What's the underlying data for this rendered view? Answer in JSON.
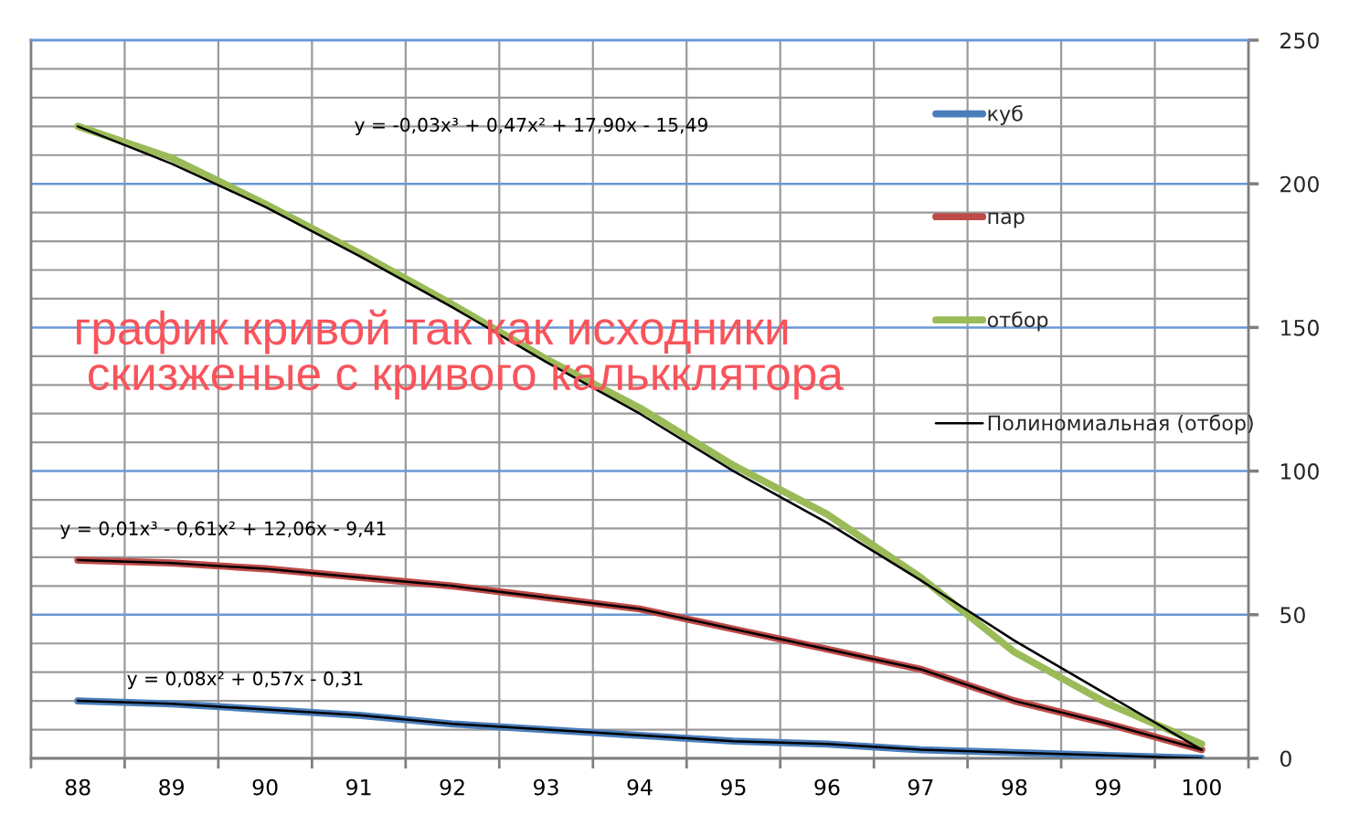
{
  "chart_data": {
    "type": "line",
    "categories": [
      "88",
      "89",
      "90",
      "91",
      "92",
      "93",
      "94",
      "95",
      "96",
      "97",
      "98",
      "99",
      "100"
    ],
    "series": [
      {
        "name": "куб",
        "color": "#4a7ebb",
        "values": [
          20,
          19,
          17,
          15,
          12,
          10,
          8,
          6,
          5,
          3,
          2,
          1,
          0
        ]
      },
      {
        "name": "пар",
        "color": "#be4b48",
        "values": [
          69,
          68,
          66,
          63,
          60,
          56,
          52,
          45,
          38,
          31,
          20,
          12,
          3
        ]
      },
      {
        "name": "отбор",
        "color": "#9bbb59",
        "values": [
          220,
          209,
          193,
          176,
          158,
          139,
          122,
          102,
          85,
          63,
          37,
          19,
          5
        ]
      },
      {
        "type": "line",
        "color": "#000000",
        "values": [
          20,
          19,
          17,
          15,
          12,
          10,
          8,
          6,
          5,
          3,
          2,
          1,
          0
        ]
      },
      {
        "type": "line",
        "color": "#000000",
        "values": [
          69,
          68,
          66,
          63,
          60,
          56,
          52,
          45,
          38,
          31,
          20,
          12,
          3
        ]
      },
      {
        "name": "Полиномиальная (отбор)",
        "type": "line",
        "color": "#000000",
        "values": [
          220,
          207,
          192,
          175,
          157,
          138,
          120,
          100,
          82,
          62,
          41,
          22,
          3
        ]
      }
    ],
    "ylim": [
      0,
      250
    ],
    "yticks": [
      0,
      {
        "value": 10,
        "label": null
      },
      {
        "value": 20,
        "label": null
      },
      {
        "value": 30,
        "label": null
      },
      {
        "value": 40,
        "label": null
      },
      50,
      {
        "value": 60,
        "label": null
      },
      {
        "value": 70,
        "label": null
      },
      {
        "value": 80,
        "label": null
      },
      {
        "value": 90,
        "label": null
      },
      100,
      {
        "value": 110,
        "label": null
      },
      {
        "value": 120,
        "label": null
      },
      {
        "value": 130,
        "label": null
      },
      {
        "value": 140,
        "label": null
      },
      150,
      {
        "value": 160,
        "label": null
      },
      {
        "value": 170,
        "label": null
      },
      {
        "value": 180,
        "label": null
      },
      {
        "value": 190,
        "label": null
      },
      200,
      {
        "value": 210,
        "label": null
      },
      {
        "value": 220,
        "label": null
      },
      {
        "value": 230,
        "label": null
      },
      {
        "value": 240,
        "label": null
      },
      250
    ],
    "grid": true,
    "legend": "top right",
    "annotations": [
      "y = -0,03x³ + 0,47x² + 17,90x - 15,49",
      "график кривой так как исходники\n скизженые с кривого калькклятора",
      "y = 0,01x³ - 0,61x² + 12,06x - 9,41",
      "y = 0,08x² + 0,57x - 0,31"
    ]
  }
}
